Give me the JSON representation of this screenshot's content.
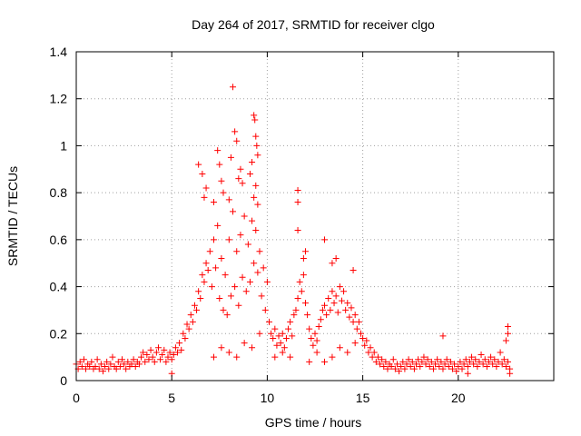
{
  "chart_data": {
    "type": "scatter",
    "title": "Day 264 of 2017, SRMTID for receiver clgo",
    "xlabel": "GPS time / hours",
    "ylabel": "SRMTID / TECUs",
    "xlim": [
      0,
      25
    ],
    "ylim": [
      0,
      1.4
    ],
    "xticks": [
      0,
      5,
      10,
      15,
      20
    ],
    "xtick_labels": [
      "0",
      "5",
      "10",
      "15",
      "20"
    ],
    "yticks": [
      0,
      0.2,
      0.4,
      0.6,
      0.8,
      1,
      1.2,
      1.4
    ],
    "ytick_labels": [
      "0",
      "0.2",
      "0.4",
      "0.6",
      "0.8",
      "1",
      "1.2",
      "1.4"
    ],
    "grid": true,
    "marker": "+",
    "color": "#ff0000",
    "series": [
      {
        "name": "SRMTID",
        "points": [
          [
            0.0,
            0.07
          ],
          [
            0.1,
            0.05
          ],
          [
            0.2,
            0.08
          ],
          [
            0.3,
            0.06
          ],
          [
            0.4,
            0.09
          ],
          [
            0.5,
            0.05
          ],
          [
            0.6,
            0.07
          ],
          [
            0.7,
            0.06
          ],
          [
            0.8,
            0.08
          ],
          [
            0.9,
            0.05
          ],
          [
            1.0,
            0.06
          ],
          [
            1.1,
            0.09
          ],
          [
            1.2,
            0.05
          ],
          [
            1.3,
            0.07
          ],
          [
            1.4,
            0.04
          ],
          [
            1.5,
            0.06
          ],
          [
            1.6,
            0.08
          ],
          [
            1.7,
            0.05
          ],
          [
            1.8,
            0.07
          ],
          [
            1.9,
            0.1
          ],
          [
            2.0,
            0.06
          ],
          [
            2.1,
            0.05
          ],
          [
            2.2,
            0.08
          ],
          [
            2.3,
            0.06
          ],
          [
            2.4,
            0.09
          ],
          [
            2.5,
            0.07
          ],
          [
            2.6,
            0.05
          ],
          [
            2.7,
            0.08
          ],
          [
            2.8,
            0.06
          ],
          [
            2.9,
            0.07
          ],
          [
            3.0,
            0.09
          ],
          [
            3.1,
            0.06
          ],
          [
            3.2,
            0.08
          ],
          [
            3.3,
            0.07
          ],
          [
            3.4,
            0.1
          ],
          [
            3.5,
            0.12
          ],
          [
            3.6,
            0.08
          ],
          [
            3.7,
            0.11
          ],
          [
            3.8,
            0.09
          ],
          [
            3.9,
            0.13
          ],
          [
            4.0,
            0.1
          ],
          [
            4.1,
            0.08
          ],
          [
            4.2,
            0.12
          ],
          [
            4.3,
            0.14
          ],
          [
            4.4,
            0.09
          ],
          [
            4.5,
            0.11
          ],
          [
            4.6,
            0.13
          ],
          [
            4.7,
            0.08
          ],
          [
            4.8,
            0.1
          ],
          [
            4.9,
            0.12
          ],
          [
            5.0,
            0.09
          ],
          [
            5.1,
            0.11
          ],
          [
            5.2,
            0.14
          ],
          [
            5.3,
            0.12
          ],
          [
            5.4,
            0.16
          ],
          [
            5.5,
            0.13
          ],
          [
            5.6,
            0.2
          ],
          [
            5.7,
            0.18
          ],
          [
            5.8,
            0.24
          ],
          [
            5.9,
            0.22
          ],
          [
            6.0,
            0.28
          ],
          [
            6.1,
            0.25
          ],
          [
            6.2,
            0.32
          ],
          [
            6.3,
            0.3
          ],
          [
            6.4,
            0.38
          ],
          [
            6.5,
            0.35
          ],
          [
            6.6,
            0.45
          ],
          [
            6.7,
            0.42
          ],
          [
            6.8,
            0.5
          ],
          [
            6.9,
            0.47
          ],
          [
            7.0,
            0.55
          ],
          [
            7.1,
            0.4
          ],
          [
            7.2,
            0.6
          ],
          [
            7.3,
            0.48
          ],
          [
            7.4,
            0.66
          ],
          [
            7.5,
            0.35
          ],
          [
            7.6,
            0.52
          ],
          [
            7.7,
            0.3
          ],
          [
            7.8,
            0.45
          ],
          [
            7.9,
            0.28
          ],
          [
            8.0,
            0.6
          ],
          [
            8.1,
            0.36
          ],
          [
            8.2,
            0.72
          ],
          [
            8.3,
            0.4
          ],
          [
            8.4,
            0.55
          ],
          [
            8.5,
            0.32
          ],
          [
            8.6,
            0.62
          ],
          [
            8.7,
            0.44
          ],
          [
            8.8,
            0.7
          ],
          [
            8.9,
            0.38
          ],
          [
            9.0,
            0.58
          ],
          [
            9.1,
            0.42
          ],
          [
            9.2,
            0.68
          ],
          [
            9.3,
            0.5
          ],
          [
            9.4,
            0.64
          ],
          [
            9.5,
            0.46
          ],
          [
            9.6,
            0.55
          ],
          [
            9.7,
            0.36
          ],
          [
            9.8,
            0.48
          ],
          [
            9.9,
            0.3
          ],
          [
            10.0,
            0.42
          ],
          [
            10.1,
            0.25
          ],
          [
            10.2,
            0.2
          ],
          [
            10.3,
            0.18
          ],
          [
            10.4,
            0.22
          ],
          [
            10.5,
            0.15
          ],
          [
            10.6,
            0.19
          ],
          [
            10.7,
            0.16
          ],
          [
            10.8,
            0.2
          ],
          [
            10.9,
            0.14
          ],
          [
            11.0,
            0.18
          ],
          [
            11.1,
            0.22
          ],
          [
            11.2,
            0.25
          ],
          [
            11.3,
            0.19
          ],
          [
            11.4,
            0.28
          ],
          [
            11.5,
            0.3
          ],
          [
            11.6,
            0.35
          ],
          [
            11.7,
            0.42
          ],
          [
            11.8,
            0.38
          ],
          [
            11.9,
            0.45
          ],
          [
            12.0,
            0.33
          ],
          [
            12.1,
            0.28
          ],
          [
            12.2,
            0.22
          ],
          [
            12.3,
            0.18
          ],
          [
            12.4,
            0.15
          ],
          [
            12.5,
            0.2
          ],
          [
            12.6,
            0.17
          ],
          [
            12.7,
            0.23
          ],
          [
            12.8,
            0.26
          ],
          [
            12.9,
            0.3
          ],
          [
            13.0,
            0.32
          ],
          [
            13.1,
            0.28
          ],
          [
            13.2,
            0.35
          ],
          [
            13.3,
            0.3
          ],
          [
            13.4,
            0.38
          ],
          [
            13.5,
            0.33
          ],
          [
            13.6,
            0.36
          ],
          [
            13.7,
            0.29
          ],
          [
            13.8,
            0.4
          ],
          [
            13.9,
            0.34
          ],
          [
            14.0,
            0.38
          ],
          [
            14.1,
            0.3
          ],
          [
            14.2,
            0.33
          ],
          [
            14.3,
            0.27
          ],
          [
            14.4,
            0.31
          ],
          [
            14.5,
            0.25
          ],
          [
            14.6,
            0.28
          ],
          [
            14.7,
            0.22
          ],
          [
            14.8,
            0.25
          ],
          [
            14.9,
            0.2
          ],
          [
            15.0,
            0.18
          ],
          [
            15.1,
            0.15
          ],
          [
            15.2,
            0.17
          ],
          [
            15.3,
            0.12
          ],
          [
            15.4,
            0.14
          ],
          [
            15.5,
            0.1
          ],
          [
            15.6,
            0.12
          ],
          [
            15.7,
            0.08
          ],
          [
            15.8,
            0.1
          ],
          [
            15.9,
            0.07
          ],
          [
            16.0,
            0.09
          ],
          [
            16.1,
            0.06
          ],
          [
            16.2,
            0.08
          ],
          [
            16.3,
            0.05
          ],
          [
            16.4,
            0.07
          ],
          [
            16.5,
            0.06
          ],
          [
            16.6,
            0.09
          ],
          [
            16.7,
            0.05
          ],
          [
            16.8,
            0.07
          ],
          [
            16.9,
            0.04
          ],
          [
            17.0,
            0.06
          ],
          [
            17.1,
            0.08
          ],
          [
            17.2,
            0.05
          ],
          [
            17.3,
            0.07
          ],
          [
            17.4,
            0.09
          ],
          [
            17.5,
            0.06
          ],
          [
            17.6,
            0.08
          ],
          [
            17.7,
            0.05
          ],
          [
            17.8,
            0.07
          ],
          [
            17.9,
            0.09
          ],
          [
            18.0,
            0.06
          ],
          [
            18.1,
            0.08
          ],
          [
            18.2,
            0.1
          ],
          [
            18.3,
            0.07
          ],
          [
            18.4,
            0.09
          ],
          [
            18.5,
            0.06
          ],
          [
            18.6,
            0.08
          ],
          [
            18.7,
            0.05
          ],
          [
            18.8,
            0.07
          ],
          [
            18.9,
            0.09
          ],
          [
            19.0,
            0.06
          ],
          [
            19.1,
            0.08
          ],
          [
            19.2,
            0.05
          ],
          [
            19.3,
            0.07
          ],
          [
            19.4,
            0.09
          ],
          [
            19.5,
            0.06
          ],
          [
            19.6,
            0.08
          ],
          [
            19.7,
            0.05
          ],
          [
            19.8,
            0.07
          ],
          [
            19.9,
            0.04
          ],
          [
            20.0,
            0.06
          ],
          [
            20.1,
            0.08
          ],
          [
            20.2,
            0.05
          ],
          [
            20.3,
            0.07
          ],
          [
            20.4,
            0.09
          ],
          [
            20.5,
            0.06
          ],
          [
            20.6,
            0.08
          ],
          [
            20.7,
            0.1
          ],
          [
            20.8,
            0.07
          ],
          [
            20.9,
            0.09
          ],
          [
            21.0,
            0.06
          ],
          [
            21.1,
            0.08
          ],
          [
            21.2,
            0.11
          ],
          [
            21.3,
            0.07
          ],
          [
            21.4,
            0.09
          ],
          [
            21.5,
            0.06
          ],
          [
            21.6,
            0.08
          ],
          [
            21.7,
            0.1
          ],
          [
            21.8,
            0.07
          ],
          [
            21.9,
            0.09
          ],
          [
            22.0,
            0.06
          ],
          [
            22.1,
            0.08
          ],
          [
            22.2,
            0.12
          ],
          [
            22.3,
            0.07
          ],
          [
            22.4,
            0.09
          ],
          [
            22.5,
            0.06
          ],
          [
            22.6,
            0.08
          ],
          [
            22.7,
            0.05
          ],
          [
            6.4,
            0.92
          ],
          [
            6.6,
            0.88
          ],
          [
            6.7,
            0.78
          ],
          [
            6.8,
            0.82
          ],
          [
            7.4,
            0.98
          ],
          [
            7.5,
            0.92
          ],
          [
            7.6,
            0.85
          ],
          [
            7.2,
            0.76
          ],
          [
            7.7,
            0.8
          ],
          [
            8.2,
            1.25
          ],
          [
            8.3,
            1.06
          ],
          [
            8.4,
            1.02
          ],
          [
            8.1,
            0.95
          ],
          [
            8.5,
            0.86
          ],
          [
            8.6,
            0.9
          ],
          [
            8.7,
            0.84
          ],
          [
            8.0,
            0.77
          ],
          [
            9.2,
            0.93
          ],
          [
            9.3,
            1.13
          ],
          [
            9.35,
            1.11
          ],
          [
            9.4,
            1.04
          ],
          [
            9.45,
            1.0
          ],
          [
            9.5,
            0.96
          ],
          [
            9.1,
            0.88
          ],
          [
            9.4,
            0.83
          ],
          [
            9.3,
            0.78
          ],
          [
            9.5,
            0.75
          ],
          [
            11.6,
            0.81
          ],
          [
            11.6,
            0.76
          ],
          [
            11.6,
            0.64
          ],
          [
            11.9,
            0.52
          ],
          [
            12.0,
            0.55
          ],
          [
            13.0,
            0.6
          ],
          [
            13.6,
            0.52
          ],
          [
            13.4,
            0.5
          ],
          [
            14.5,
            0.47
          ],
          [
            7.2,
            0.1
          ],
          [
            7.6,
            0.14
          ],
          [
            8.0,
            0.12
          ],
          [
            8.4,
            0.1
          ],
          [
            8.8,
            0.16
          ],
          [
            9.2,
            0.14
          ],
          [
            9.6,
            0.2
          ],
          [
            10.4,
            0.1
          ],
          [
            10.8,
            0.12
          ],
          [
            11.2,
            0.1
          ],
          [
            12.2,
            0.08
          ],
          [
            12.6,
            0.12
          ],
          [
            13.0,
            0.08
          ],
          [
            13.4,
            0.1
          ],
          [
            13.8,
            0.14
          ],
          [
            14.2,
            0.12
          ],
          [
            14.6,
            0.16
          ],
          [
            22.6,
            0.23
          ],
          [
            22.6,
            0.2
          ],
          [
            22.5,
            0.17
          ],
          [
            19.2,
            0.19
          ],
          [
            20.5,
            0.03
          ],
          [
            22.7,
            0.03
          ],
          [
            5.0,
            0.03
          ]
        ]
      }
    ]
  }
}
